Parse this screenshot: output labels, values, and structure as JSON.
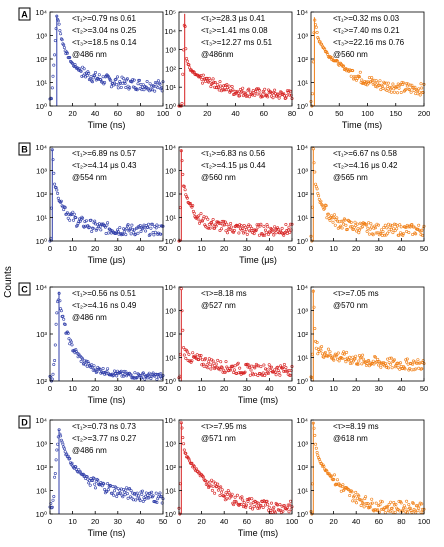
{
  "figure": {
    "y_axis_label": "Counts",
    "colors": {
      "blue": "#2f3da8",
      "red": "#d62020",
      "orange": "#f07d12"
    }
  },
  "chart_data": [
    {
      "row": "A",
      "col": 0,
      "panel_label": "A",
      "type": "scatter",
      "color": "blue",
      "ylog": true,
      "ylim": [
        1,
        10000
      ],
      "yticks": [
        "10⁰",
        "10¹",
        "10²",
        "10³",
        "10⁴"
      ],
      "xlim": [
        0,
        100
      ],
      "xticks": [
        "0",
        "20",
        "40",
        "60",
        "80",
        "100"
      ],
      "xlabel": "Time (ns)",
      "annotations": [
        "<τ₁>=0.79 ns  0.61",
        "<τ₂>=3.04 ns  0.25",
        "<τ₃>=18.5 ns  0.14",
        "@486 nm"
      ],
      "series": [
        {
          "name": "",
          "values": [
            [
              1,
              2
            ],
            [
              3,
              30
            ],
            [
              5,
              900
            ],
            [
              6,
              7000
            ],
            [
              8,
              3000
            ],
            [
              10,
              800
            ],
            [
              14,
              200
            ],
            [
              20,
              60
            ],
            [
              30,
              25
            ],
            [
              40,
              16
            ],
            [
              55,
              11
            ],
            [
              70,
              9
            ],
            [
              85,
              8
            ],
            [
              100,
              7
            ]
          ]
        }
      ]
    },
    {
      "row": "A",
      "col": 1,
      "panel_label": "",
      "type": "scatter",
      "color": "red",
      "ylog": true,
      "ylim": [
        1,
        100000
      ],
      "yticks": [
        "10⁰",
        "10¹",
        "10²",
        "10³",
        "10⁴",
        "10⁵"
      ],
      "xlim": [
        0,
        80
      ],
      "xticks": [
        "0",
        "20",
        "40",
        "60",
        "80"
      ],
      "xlabel": "",
      "annotations": [
        "<τ₁>=28.3 μs  0.41",
        "<τ₂>=1.41 ms  0.08",
        "<τ₃>=12.27 ms  0.51",
        "@486nm"
      ],
      "series": [
        {
          "name": "",
          "values": [
            [
              2,
              1
            ],
            [
              4,
              80000
            ],
            [
              5,
              400
            ],
            [
              8,
              80
            ],
            [
              15,
              30
            ],
            [
              25,
              15
            ],
            [
              40,
              6
            ],
            [
              55,
              5
            ],
            [
              70,
              4
            ],
            [
              80,
              4
            ]
          ]
        }
      ]
    },
    {
      "row": "A",
      "col": 2,
      "panel_label": "",
      "type": "scatter",
      "color": "orange",
      "ylog": true,
      "ylim": [
        1,
        10000
      ],
      "yticks": [
        "10⁰",
        "10¹",
        "10²",
        "10³",
        "10⁴"
      ],
      "xlim": [
        0,
        200
      ],
      "xticks": [
        "0",
        "50",
        "100",
        "150",
        "200"
      ],
      "xlabel": "",
      "annotations": [
        "<τ₁>=0.32 ms  0.03",
        "<τ₂>=7.40 ms  0.21",
        "<τ₃>=22.16 ms  0.76",
        "@560 nm"
      ],
      "series": [
        {
          "name": "",
          "values": [
            [
              2,
              1
            ],
            [
              6,
              6000
            ],
            [
              12,
              800
            ],
            [
              30,
              150
            ],
            [
              60,
              40
            ],
            [
              90,
              15
            ],
            [
              120,
              8
            ],
            [
              160,
              6
            ],
            [
              200,
              5
            ]
          ]
        }
      ]
    },
    {
      "row": "A",
      "col": "all",
      "panel_label": "",
      "type": "scatter",
      "color": "",
      "ylog": false,
      "ylim": [],
      "yticks": [],
      "xlim": [],
      "xticks": [],
      "xlabel": "Time (ms)",
      "annotations": [],
      "series": []
    },
    {
      "row": "B",
      "col": 0,
      "panel_label": "B",
      "type": "scatter",
      "color": "blue",
      "ylog": true,
      "ylim": [
        1,
        10000
      ],
      "yticks": [
        "10⁰",
        "10¹",
        "10²",
        "10³",
        "10⁴"
      ],
      "xlim": [
        0,
        50
      ],
      "xticks": [
        "0",
        "10",
        "20",
        "30",
        "40",
        "50"
      ],
      "xlabel": "Time (μs)",
      "annotations": [
        "<τ₁>=6.89 ns  0.57",
        "<τ₂>=4.14 μs  0.43",
        "@554 nm"
      ],
      "series": [
        {
          "name": "",
          "values": [
            [
              0.5,
              1
            ],
            [
              1,
              8000
            ],
            [
              2,
              300
            ],
            [
              4,
              60
            ],
            [
              8,
              15
            ],
            [
              12,
              7
            ],
            [
              20,
              4
            ],
            [
              30,
              3
            ],
            [
              40,
              3
            ],
            [
              50,
              3
            ]
          ]
        }
      ]
    },
    {
      "row": "B",
      "col": 1,
      "panel_label": "",
      "type": "scatter",
      "color": "red",
      "ylog": true,
      "ylim": [
        1,
        10000
      ],
      "yticks": [
        "10⁰",
        "10¹",
        "10²",
        "10³",
        "10⁴"
      ],
      "xlim": [
        0,
        50
      ],
      "xticks": [
        "0",
        "10",
        "20",
        "30",
        "40",
        "50"
      ],
      "xlabel": "",
      "annotations": [
        "<τ₁>=6.83 ns  0.56",
        "<τ₂>=4.15 μs  0.44",
        "@560 nm"
      ],
      "series": [
        {
          "name": "",
          "values": [
            [
              0.5,
              1
            ],
            [
              1,
              8000
            ],
            [
              2,
              250
            ],
            [
              4,
              50
            ],
            [
              8,
              12
            ],
            [
              12,
              6
            ],
            [
              20,
              4
            ],
            [
              30,
              3
            ],
            [
              40,
              3
            ],
            [
              50,
              3
            ]
          ]
        }
      ]
    },
    {
      "row": "B",
      "col": 2,
      "panel_label": "",
      "type": "scatter",
      "color": "orange",
      "ylog": true,
      "ylim": [
        1,
        10000
      ],
      "yticks": [
        "10⁰",
        "10¹",
        "10²",
        "10³",
        "10⁴"
      ],
      "xlim": [
        0,
        50
      ],
      "xticks": [
        "0",
        "10",
        "20",
        "30",
        "40",
        "50"
      ],
      "xlabel": "",
      "annotations": [
        "<τ₁>=6.67 ns  0.58",
        "<τ₂>=4.16 μs  0.42",
        "@565 nm"
      ],
      "series": [
        {
          "name": "",
          "values": [
            [
              0.5,
              1
            ],
            [
              1,
              8000
            ],
            [
              2,
              250
            ],
            [
              4,
              50
            ],
            [
              8,
              12
            ],
            [
              12,
              6
            ],
            [
              20,
              4
            ],
            [
              30,
              3
            ],
            [
              40,
              3
            ],
            [
              50,
              3
            ]
          ]
        }
      ]
    },
    {
      "row": "B",
      "col": "all",
      "panel_label": "",
      "type": "scatter",
      "color": "",
      "ylog": false,
      "ylim": [],
      "yticks": [],
      "xlim": [],
      "xticks": [],
      "xlabel": "Time (μs)",
      "annotations": [],
      "series": []
    },
    {
      "row": "C",
      "col": 0,
      "panel_label": "C",
      "type": "scatter",
      "color": "blue",
      "ylog": true,
      "ylim": [
        100,
        10000
      ],
      "yticks": [
        "10²",
        "10³",
        "10⁴"
      ],
      "xlim": [
        0,
        50
      ],
      "xticks": [
        "0",
        "10",
        "20",
        "30",
        "40",
        "50"
      ],
      "xlabel": "Time (ns)",
      "annotations": [
        "<τ₁>=0.56 ns  0.51",
        "<τ₂>=4.16 ns  0.49",
        "@486 nm"
      ],
      "series": [
        {
          "name": "",
          "values": [
            [
              1,
              110
            ],
            [
              2,
              300
            ],
            [
              3,
              3000
            ],
            [
              4,
              8000
            ],
            [
              5,
              3000
            ],
            [
              7,
              1200
            ],
            [
              10,
              500
            ],
            [
              15,
              250
            ],
            [
              20,
              180
            ],
            [
              30,
              140
            ],
            [
              40,
              130
            ],
            [
              50,
              125
            ]
          ]
        }
      ]
    },
    {
      "row": "C",
      "col": 1,
      "panel_label": "",
      "type": "scatter",
      "color": "red",
      "ylog": true,
      "ylim": [
        1,
        10000
      ],
      "yticks": [
        "10⁰",
        "10¹",
        "10²",
        "10³",
        "10⁴"
      ],
      "xlim": [
        0,
        50
      ],
      "xticks": [
        "0",
        "10",
        "20",
        "30",
        "40",
        "50"
      ],
      "xlabel": "",
      "annotations": [
        "<τ>=8.18 ms",
        "@527 nm"
      ],
      "series": [
        {
          "name": "",
          "values": [
            [
              0.5,
              1
            ],
            [
              1,
              8000
            ],
            [
              2,
              20
            ],
            [
              5,
              10
            ],
            [
              10,
              7
            ],
            [
              20,
              4
            ],
            [
              30,
              3
            ],
            [
              40,
              3
            ],
            [
              50,
              3
            ]
          ]
        }
      ]
    },
    {
      "row": "C",
      "col": 2,
      "panel_label": "",
      "type": "scatter",
      "color": "orange",
      "ylog": true,
      "ylim": [
        1,
        10000
      ],
      "yticks": [
        "10⁰",
        "10¹",
        "10²",
        "10³",
        "10⁴"
      ],
      "xlim": [
        0,
        50
      ],
      "xticks": [
        "0",
        "10",
        "20",
        "30",
        "40",
        "50"
      ],
      "xlabel": "",
      "annotations": [
        "<τ>=7.05 ms",
        "@570 nm"
      ],
      "series": [
        {
          "name": "",
          "values": [
            [
              0.5,
              1
            ],
            [
              1,
              8000
            ],
            [
              2,
              30
            ],
            [
              5,
              18
            ],
            [
              10,
              12
            ],
            [
              20,
              8
            ],
            [
              30,
              6
            ],
            [
              40,
              5
            ],
            [
              50,
              5
            ]
          ]
        }
      ]
    },
    {
      "row": "C",
      "col": "all",
      "panel_label": "",
      "type": "scatter",
      "color": "",
      "ylog": false,
      "ylim": [],
      "yticks": [],
      "xlim": [],
      "xticks": [],
      "xlabel": "Time (ms)",
      "annotations": [],
      "series": []
    },
    {
      "row": "D",
      "col": 0,
      "panel_label": "D",
      "type": "scatter",
      "color": "blue",
      "ylog": true,
      "ylim": [
        1,
        10000
      ],
      "yticks": [
        "10⁰",
        "10¹",
        "10²",
        "10³",
        "10⁴"
      ],
      "xlim": [
        0,
        50
      ],
      "xticks": [
        "0",
        "10",
        "20",
        "30",
        "40",
        "50"
      ],
      "xlabel": "Time (ns)",
      "annotations": [
        "<τ₁>=0.73 ns  0.73",
        "<τ₂>=3.77 ns  0.27",
        "@486 nm"
      ],
      "series": [
        {
          "name": "",
          "values": [
            [
              1,
              2
            ],
            [
              2,
              20
            ],
            [
              3,
              500
            ],
            [
              4,
              4000
            ],
            [
              5,
              1500
            ],
            [
              7,
              400
            ],
            [
              10,
              120
            ],
            [
              15,
              40
            ],
            [
              20,
              20
            ],
            [
              30,
              9
            ],
            [
              40,
              6
            ],
            [
              50,
              5
            ]
          ]
        }
      ]
    },
    {
      "row": "D",
      "col": 1,
      "panel_label": "",
      "type": "scatter",
      "color": "red",
      "ylog": true,
      "ylim": [
        1,
        10000
      ],
      "yticks": [
        "10⁰",
        "10¹",
        "10²",
        "10³",
        "10⁴"
      ],
      "xlim": [
        0,
        100
      ],
      "xticks": [
        "0",
        "20",
        "40",
        "60",
        "80",
        "100"
      ],
      "xlabel": "",
      "annotations": [
        "<τ>=7.95 ms",
        "@571 nm"
      ],
      "series": [
        {
          "name": "",
          "values": [
            [
              1,
              1
            ],
            [
              2,
              8000
            ],
            [
              5,
              400
            ],
            [
              10,
              150
            ],
            [
              20,
              40
            ],
            [
              30,
              15
            ],
            [
              40,
              7
            ],
            [
              50,
              4
            ],
            [
              60,
              3
            ],
            [
              80,
              2
            ],
            [
              100,
              2
            ]
          ]
        }
      ]
    },
    {
      "row": "D",
      "col": 2,
      "panel_label": "",
      "type": "scatter",
      "color": "orange",
      "ylog": true,
      "ylim": [
        1,
        10000
      ],
      "yticks": [
        "10⁰",
        "10¹",
        "10²",
        "10³",
        "10⁴"
      ],
      "xlim": [
        0,
        100
      ],
      "xticks": [
        "0",
        "20",
        "40",
        "60",
        "80",
        "100"
      ],
      "xlabel": "",
      "annotations": [
        "<τ>=8.19 ms",
        "@618 nm"
      ],
      "series": [
        {
          "name": "",
          "values": [
            [
              1,
              1
            ],
            [
              2,
              8000
            ],
            [
              5,
              400
            ],
            [
              10,
              120
            ],
            [
              20,
              30
            ],
            [
              30,
              10
            ],
            [
              40,
              5
            ],
            [
              50,
              3
            ],
            [
              60,
              2
            ],
            [
              80,
              2
            ],
            [
              100,
              2
            ]
          ]
        }
      ]
    },
    {
      "row": "D",
      "col": "all",
      "panel_label": "",
      "type": "scatter",
      "color": "",
      "ylog": false,
      "ylim": [],
      "yticks": [],
      "xlim": [],
      "xticks": [],
      "xlabel": "Time (ms)",
      "annotations": [],
      "series": []
    }
  ]
}
